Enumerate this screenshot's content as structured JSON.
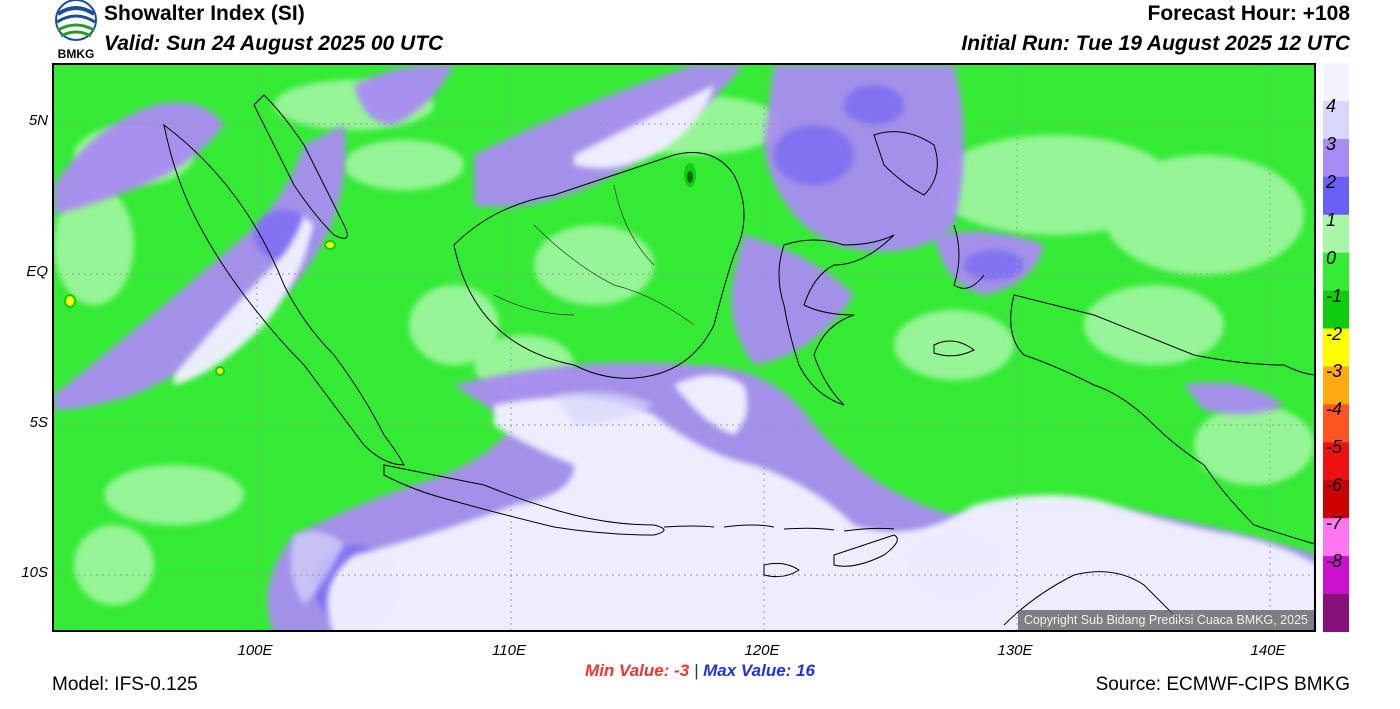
{
  "header": {
    "title": "Showalter Index (SI)",
    "valid": "Valid: Sun 24 August 2025 00 UTC",
    "forecast_hour": "Forecast Hour: +108",
    "initial_run": "Initial Run: Tue 19 August 2025 12 UTC",
    "logo_text": "BMKG"
  },
  "axes": {
    "lat_labels": [
      "5N",
      "EQ",
      "5S",
      "10S"
    ],
    "lon_labels": [
      "100E",
      "110E",
      "120E",
      "130E",
      "140E"
    ]
  },
  "colorbar": {
    "labels": [
      "4",
      "3",
      "2",
      "1",
      "0",
      "-1",
      "-2",
      "-3",
      "-4",
      "-5",
      "-6",
      "-7",
      "-8"
    ],
    "colors": [
      "#f4f4ff",
      "#d8d8fb",
      "#a98cf3",
      "#6a5ff5",
      "#a7f7a7",
      "#35ea35",
      "#0ecc0e",
      "#ffff00",
      "#ffaa11",
      "#ff5522",
      "#ee1111",
      "#cc0000",
      "#ff77ee",
      "#cc11cc",
      "#881177"
    ]
  },
  "footer": {
    "copyright": "Copyright Sub Bidang Prediksi Cuaca BMKG, 2025",
    "min_label": "Min Value:  -3",
    "separator": "|",
    "max_label": "Max Value:  16",
    "model": "Model: IFS-0.125",
    "source": "Source: ECMWF-CIPS BMKG"
  }
}
